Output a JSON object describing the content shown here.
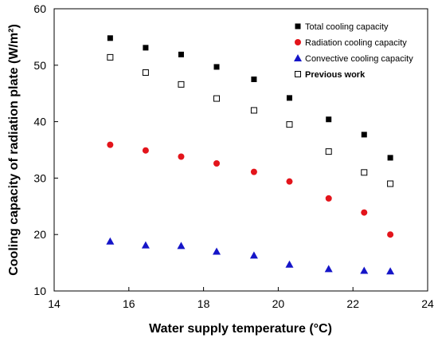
{
  "chart_data": {
    "type": "scatter",
    "title": "",
    "xlabel": "Water supply temperature (°C)",
    "ylabel": "Cooling capacity of radiation plate (W/m²)",
    "xlim": [
      14,
      24
    ],
    "ylim": [
      10,
      60
    ],
    "xticks": [
      "14",
      "16",
      "18",
      "20",
      "22",
      "24"
    ],
    "yticks": [
      "10",
      "20",
      "30",
      "40",
      "50",
      "60"
    ],
    "grid": false,
    "legend_position": "top-right",
    "x": [
      15.5,
      16.45,
      17.4,
      18.35,
      19.35,
      20.3,
      21.35,
      22.3,
      23.0
    ],
    "series": [
      {
        "name": "Total cooling capacity",
        "marker": "square-filled",
        "color": "#000000",
        "values": [
          54.8,
          53.1,
          51.9,
          49.7,
          47.5,
          44.2,
          40.4,
          37.7,
          33.6
        ]
      },
      {
        "name": "Radiation cooling capacity",
        "marker": "circle-filled",
        "color": "#e3141b",
        "values": [
          35.9,
          34.9,
          33.8,
          32.6,
          31.1,
          29.4,
          26.4,
          23.9,
          20.0
        ]
      },
      {
        "name": "Convective cooling capacity",
        "marker": "triangle-filled",
        "color": "#1515c8",
        "values": [
          18.8,
          18.1,
          18.0,
          17.0,
          16.3,
          14.7,
          13.9,
          13.6,
          13.5
        ]
      },
      {
        "name": "Previous work",
        "marker": "square-open",
        "color": "#000000",
        "values": [
          51.4,
          48.7,
          46.6,
          44.1,
          42.0,
          39.5,
          34.7,
          31.0,
          29.0
        ]
      }
    ]
  }
}
